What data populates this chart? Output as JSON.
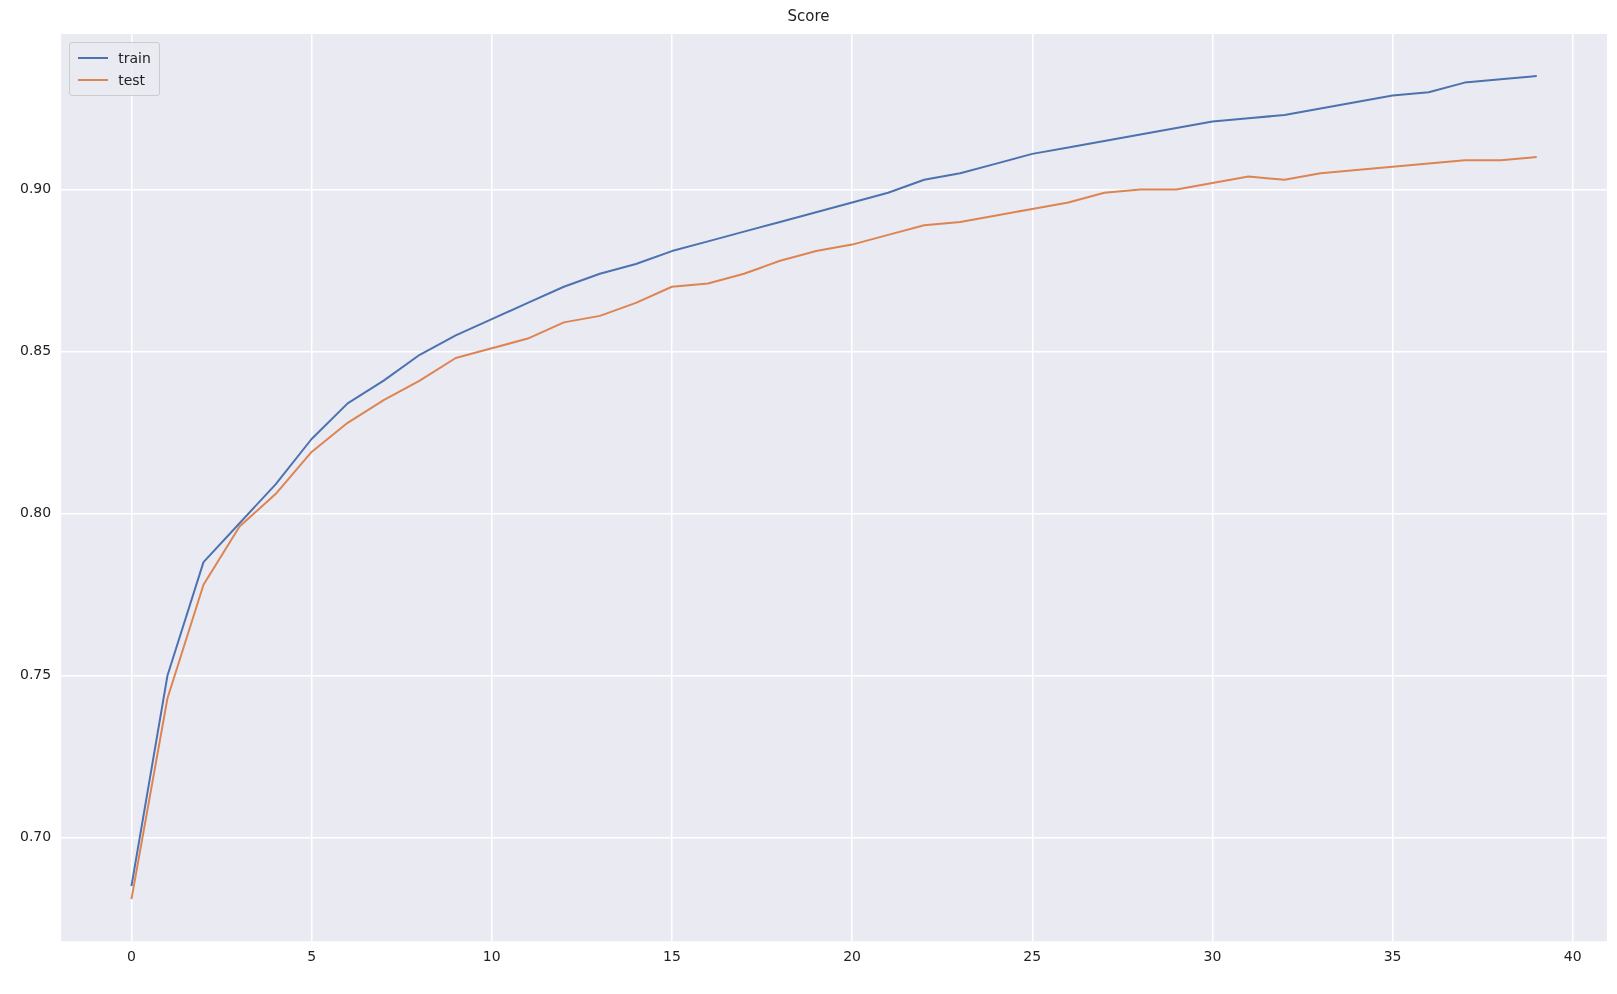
{
  "chart_data": {
    "type": "line",
    "title": "Score",
    "x": [
      0,
      1,
      2,
      3,
      4,
      5,
      6,
      7,
      8,
      9,
      10,
      11,
      12,
      13,
      14,
      15,
      16,
      17,
      18,
      19,
      20,
      21,
      22,
      23,
      24,
      25,
      26,
      27,
      28,
      29,
      30,
      31,
      32,
      33,
      34,
      35,
      36,
      37,
      38,
      39
    ],
    "series": [
      {
        "name": "train",
        "color": "#4c72b0",
        "values": [
          0.685,
          0.75,
          0.785,
          0.797,
          0.809,
          0.823,
          0.834,
          0.841,
          0.849,
          0.855,
          0.86,
          0.865,
          0.87,
          0.874,
          0.877,
          0.881,
          0.884,
          0.887,
          0.89,
          0.893,
          0.896,
          0.899,
          0.903,
          0.905,
          0.908,
          0.911,
          0.913,
          0.915,
          0.917,
          0.919,
          0.921,
          0.922,
          0.923,
          0.925,
          0.927,
          0.929,
          0.93,
          0.933,
          0.934,
          0.935
        ]
      },
      {
        "name": "test",
        "color": "#dd8452",
        "values": [
          0.681,
          0.743,
          0.778,
          0.796,
          0.806,
          0.819,
          0.828,
          0.835,
          0.841,
          0.848,
          0.851,
          0.854,
          0.859,
          0.861,
          0.865,
          0.87,
          0.871,
          0.874,
          0.878,
          0.881,
          0.883,
          0.886,
          0.889,
          0.89,
          0.892,
          0.894,
          0.896,
          0.899,
          0.9,
          0.9,
          0.902,
          0.904,
          0.903,
          0.905,
          0.906,
          0.907,
          0.908,
          0.909,
          0.909,
          0.91
        ]
      }
    ],
    "xlim": [
      -1.95,
      40.95
    ],
    "ylim": [
      0.668,
      0.948
    ],
    "xticks": [
      0,
      5,
      10,
      15,
      20,
      25,
      30,
      35,
      40
    ],
    "yticks": [
      {
        "value": 0.7,
        "label": "0.70"
      },
      {
        "value": 0.75,
        "label": "0.75"
      },
      {
        "value": 0.8,
        "label": "0.80"
      },
      {
        "value": 0.85,
        "label": "0.85"
      },
      {
        "value": 0.9,
        "label": "0.90"
      }
    ],
    "grid": true,
    "legend": "top left",
    "marker": "none",
    "line_style": "solid"
  }
}
